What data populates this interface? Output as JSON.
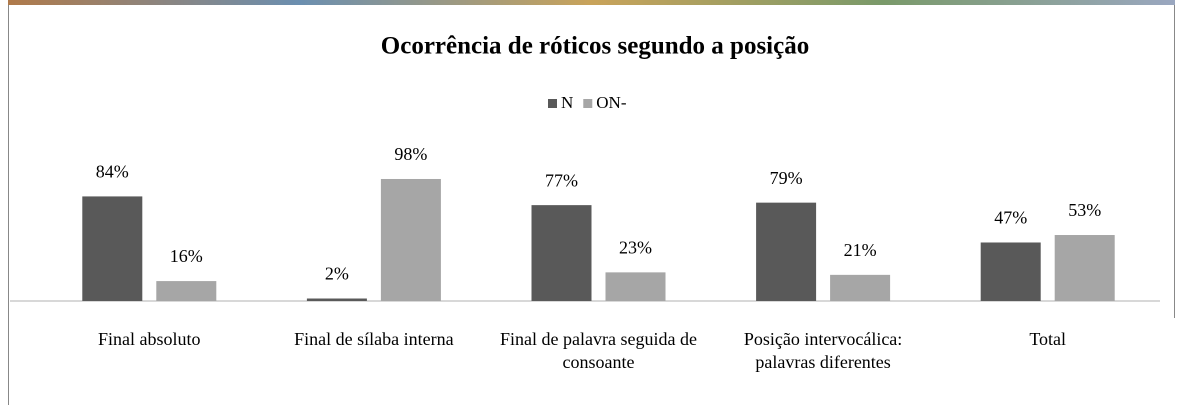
{
  "chart_data": {
    "type": "bar",
    "title": "Ocorrência de róticos segundo a posição",
    "categories": [
      "Final absoluto",
      "Final de sílaba interna",
      "Final de palavra seguida de consoante",
      "Posição intervocálica: palavras diferentes",
      "Total"
    ],
    "series": [
      {
        "name": "N",
        "color": "#595959",
        "values": [
          84,
          2,
          77,
          79,
          47
        ],
        "value_labels": [
          "84%",
          "2%",
          "77%",
          "79%",
          "47%"
        ]
      },
      {
        "name": "ON-",
        "color": "#a6a6a6",
        "values": [
          16,
          98,
          23,
          21,
          53
        ],
        "value_labels": [
          "16%",
          "98%",
          "23%",
          "21%",
          "53%"
        ]
      }
    ],
    "ylim": [
      0,
      100
    ],
    "legend": "top"
  }
}
